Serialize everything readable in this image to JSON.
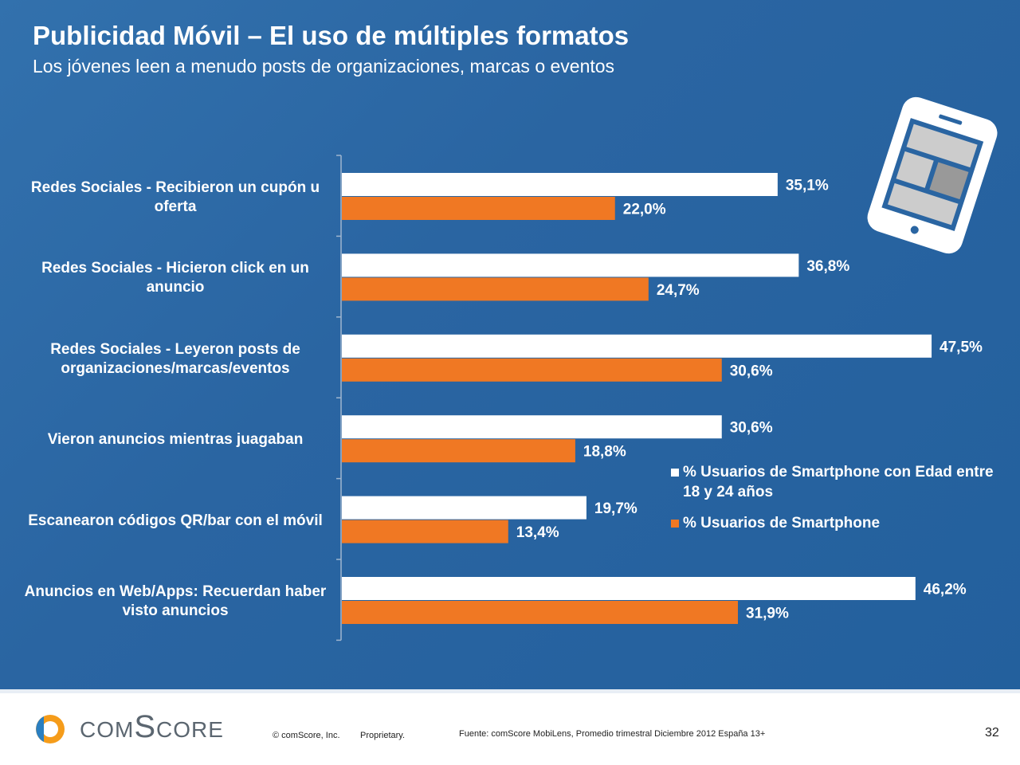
{
  "title": "Publicidad Móvil – El uso de múltiples formatos",
  "subtitle": "Los jóvenes leen a menudo posts de organizaciones, marcas o eventos",
  "chart_data": {
    "type": "bar",
    "orientation": "horizontal",
    "categories": [
      "Redes Sociales - Recibieron un cupón u oferta",
      "Redes Sociales - Hicieron click en un anuncio",
      "Redes Sociales - Leyeron posts de organizaciones/marcas/eventos",
      "Vieron anuncios mientras juagaban",
      "Escanearon códigos QR/bar con el móvil",
      "Anuncios en Web/Apps: Recuerdan haber visto anuncios"
    ],
    "series": [
      {
        "name": "% Usuarios de Smartphone con Edad entre 18  y 24 años",
        "color": "#ffffff",
        "values": [
          35.1,
          36.8,
          47.5,
          30.6,
          19.7,
          46.2
        ],
        "value_labels": [
          "35,1%",
          "36,8%",
          "47,5%",
          "30,6%",
          "19,7%",
          "46,2%"
        ]
      },
      {
        "name": "% Usuarios de Smartphone",
        "color": "#f07823",
        "values": [
          22.0,
          24.7,
          30.6,
          18.8,
          13.4,
          31.9
        ],
        "value_labels": [
          "22,0%",
          "24,7%",
          "30,6%",
          "18,8%",
          "13,4%",
          "31,9%"
        ]
      }
    ]
  },
  "footer": {
    "logo": "comScore",
    "copyright": "© comScore, Inc.",
    "proprietary": "Proprietary.",
    "source": "Fuente: comScore MobiLens, Promedio trimestral Diciembre 2012 España 13+",
    "page": "32"
  }
}
